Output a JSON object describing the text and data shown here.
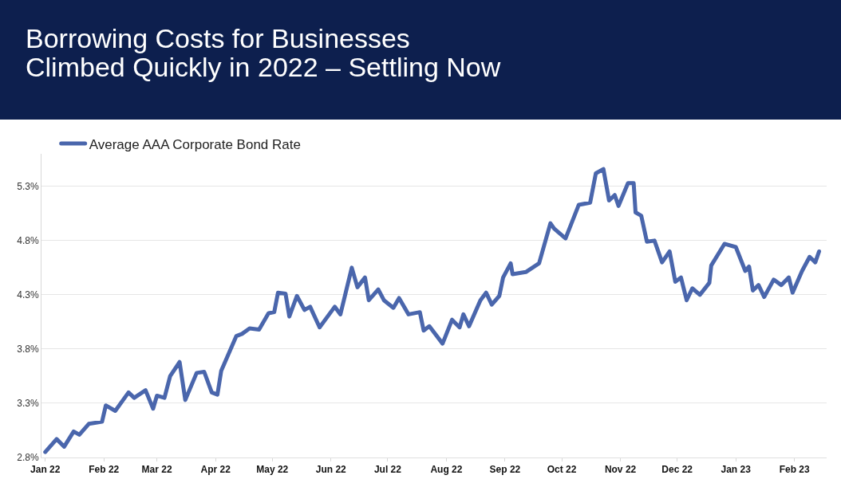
{
  "chart_data": {
    "type": "line",
    "title": "Borrowing Costs for Businesses\nClimbed Quickly in 2022 –  Settling Now",
    "x": [
      "2022-01-01",
      "2022-01-07",
      "2022-01-11",
      "2022-01-16",
      "2022-01-19",
      "2022-01-24",
      "2022-01-31",
      "2022-02-02",
      "2022-02-07",
      "2022-02-14",
      "2022-02-17",
      "2022-02-23",
      "2022-02-27",
      "2022-03-01",
      "2022-03-05",
      "2022-03-08",
      "2022-03-13",
      "2022-03-16",
      "2022-03-22",
      "2022-03-26",
      "2022-03-30",
      "2022-04-02",
      "2022-04-04",
      "2022-04-12",
      "2022-04-15",
      "2022-04-19",
      "2022-04-24",
      "2022-04-29",
      "2022-05-02",
      "2022-05-04",
      "2022-05-08",
      "2022-05-10",
      "2022-05-14",
      "2022-05-18",
      "2022-05-21",
      "2022-05-26",
      "2022-06-03",
      "2022-06-06",
      "2022-06-12",
      "2022-06-15",
      "2022-06-19",
      "2022-06-21",
      "2022-06-26",
      "2022-06-29",
      "2022-07-04",
      "2022-07-07",
      "2022-07-12",
      "2022-07-18",
      "2022-07-20",
      "2022-07-23",
      "2022-07-30",
      "2022-08-04",
      "2022-08-08",
      "2022-08-10",
      "2022-08-13",
      "2022-08-19",
      "2022-08-22",
      "2022-08-25",
      "2022-08-29",
      "2022-08-31",
      "2022-09-04",
      "2022-09-05",
      "2022-09-12",
      "2022-09-19",
      "2022-09-25",
      "2022-09-27",
      "2022-10-03",
      "2022-10-10",
      "2022-10-16",
      "2022-10-19",
      "2022-10-23",
      "2022-10-26",
      "2022-10-29",
      "2022-10-31",
      "2022-11-05",
      "2022-11-08",
      "2022-11-09",
      "2022-11-12",
      "2022-11-15",
      "2022-11-19",
      "2022-11-23",
      "2022-11-27",
      "2022-11-30",
      "2022-12-03",
      "2022-12-06",
      "2022-12-09",
      "2022-12-13",
      "2022-12-18",
      "2022-12-19",
      "2022-12-26",
      "2023-01-01",
      "2023-01-06",
      "2023-01-08",
      "2023-01-10",
      "2023-01-13",
      "2023-01-16",
      "2023-01-21",
      "2023-01-25",
      "2023-01-29",
      "2023-01-31",
      "2023-02-05",
      "2023-02-09",
      "2023-02-12",
      "2023-02-14"
    ],
    "series": [
      {
        "name": "Average AAA Corporate Bond Rate",
        "color": "#4a66ac",
        "values": [
          2.85,
          2.97,
          2.9,
          3.04,
          3.01,
          3.11,
          3.13,
          3.28,
          3.23,
          3.4,
          3.35,
          3.42,
          3.25,
          3.37,
          3.35,
          3.55,
          3.68,
          3.33,
          3.58,
          3.59,
          3.4,
          3.38,
          3.6,
          3.92,
          3.94,
          3.99,
          3.98,
          4.13,
          4.14,
          4.32,
          4.31,
          4.1,
          4.29,
          4.16,
          4.19,
          4.0,
          4.19,
          4.12,
          4.55,
          4.37,
          4.46,
          4.25,
          4.35,
          4.25,
          4.18,
          4.27,
          4.12,
          4.14,
          3.97,
          4.01,
          3.85,
          4.07,
          4.0,
          4.12,
          4.01,
          4.25,
          4.32,
          4.21,
          4.29,
          4.46,
          4.59,
          4.49,
          4.51,
          4.59,
          4.96,
          4.91,
          4.82,
          5.13,
          5.15,
          5.42,
          5.46,
          5.17,
          5.22,
          5.12,
          5.33,
          5.33,
          5.06,
          5.03,
          4.79,
          4.8,
          4.6,
          4.7,
          4.42,
          4.46,
          4.25,
          4.36,
          4.3,
          4.41,
          4.57,
          4.77,
          4.74,
          4.52,
          4.56,
          4.34,
          4.39,
          4.28,
          4.44,
          4.39,
          4.46,
          4.32,
          4.52,
          4.65,
          4.6,
          4.7
        ]
      }
    ],
    "xlim": [
      "2021-12-30",
      "2023-02-18"
    ],
    "xticks": [
      {
        "value": "2022-01-01",
        "label": "Jan 22"
      },
      {
        "value": "2022-02-01",
        "label": "Feb 22"
      },
      {
        "value": "2022-03-01",
        "label": "Mar 22"
      },
      {
        "value": "2022-04-01",
        "label": "Apr 22"
      },
      {
        "value": "2022-05-01",
        "label": "May 22"
      },
      {
        "value": "2022-06-01",
        "label": "Jun 22"
      },
      {
        "value": "2022-07-01",
        "label": "Jul 22"
      },
      {
        "value": "2022-08-01",
        "label": "Aug 22"
      },
      {
        "value": "2022-09-01",
        "label": "Sep 22"
      },
      {
        "value": "2022-10-01",
        "label": "Oct 22"
      },
      {
        "value": "2022-11-01",
        "label": "Nov 22"
      },
      {
        "value": "2022-12-01",
        "label": "Dec 22"
      },
      {
        "value": "2023-01-01",
        "label": "Jan 23"
      },
      {
        "value": "2023-02-01",
        "label": "Feb 23"
      }
    ],
    "ylim": [
      2.8,
      5.6
    ],
    "yticks": [
      {
        "value": 2.8,
        "label": "2.8%"
      },
      {
        "value": 3.3,
        "label": "3.3%"
      },
      {
        "value": 3.8,
        "label": "3.8%"
      },
      {
        "value": 4.3,
        "label": "4.3%"
      },
      {
        "value": 4.8,
        "label": "4.8%"
      },
      {
        "value": 5.3,
        "label": "5.3%"
      }
    ],
    "grid": "y",
    "legend": "top left",
    "line_style": "solid",
    "marker": "none"
  }
}
